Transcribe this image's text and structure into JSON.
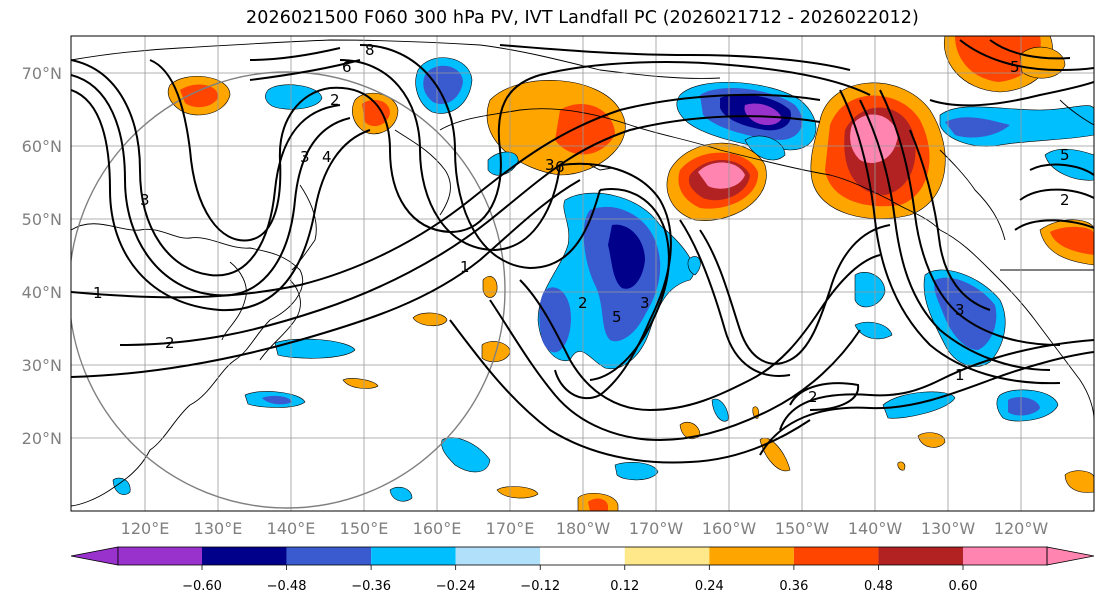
{
  "title": "2026021500 F060 300 hPa PV, IVT Landfall PC (2026021712 - 2026022012)",
  "lat_labels": [
    "70°N",
    "60°N",
    "50°N",
    "40°N",
    "30°N",
    "20°N"
  ],
  "lon_labels": [
    "120°E",
    "130°E",
    "140°E",
    "150°E",
    "160°E",
    "170°E",
    "180°W",
    "170°W",
    "160°W",
    "150°W",
    "140°W",
    "130°W",
    "120°W"
  ],
  "colorbar": {
    "colors": [
      "#9932CC",
      "#00008B",
      "#3A5BD0",
      "#00BFFF",
      "#B0E0FA",
      "#FFFFFF",
      "#FFE88A",
      "#FFA500",
      "#FF4500",
      "#B22222",
      "#FF85B0"
    ],
    "ticks": [
      "−0.60",
      "−0.48",
      "−0.36",
      "−0.24",
      "−0.12",
      "0.12",
      "0.24",
      "0.36",
      "0.48",
      "0.60"
    ]
  },
  "contour_labels": [
    "1",
    "2",
    "3",
    "4",
    "5",
    "6",
    "8"
  ],
  "features": {
    "gridline_color": "#999999",
    "contour_color": "#000000",
    "circle_color": "#808080"
  }
}
